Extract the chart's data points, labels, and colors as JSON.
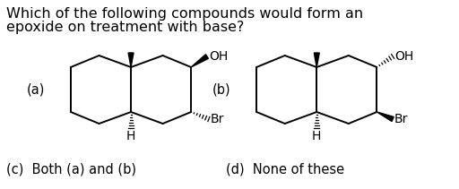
{
  "title_line1": "Which of the following compounds would form an",
  "title_line2": "epoxide on treatment with base?",
  "label_a": "(a)",
  "label_b": "(b)",
  "label_c": "(c)  Both (a) and (b)",
  "label_d": "(d)  None of these",
  "bg_color": "#ffffff",
  "text_color": "#000000",
  "font_size_title": 11.5,
  "font_size_labels": 10.5,
  "font_size_atoms": 10
}
